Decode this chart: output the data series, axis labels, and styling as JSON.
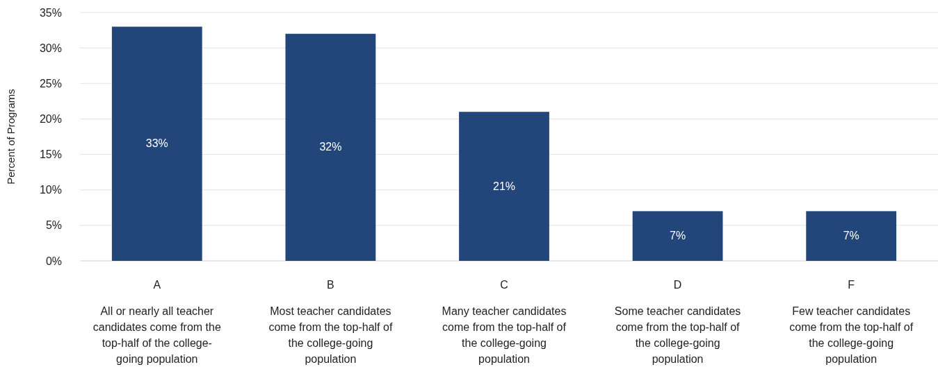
{
  "chart_data": {
    "type": "bar",
    "ylabel": "Percent of Programs",
    "categories": [
      "A\nAll or nearly all teacher candidates come from the top-half of the college-going population",
      "B\nMost teacher candidates come from the top-half of the college-going population",
      "C\nMany teacher candidates come from the top-half of the college-going population",
      "D\nSome teacher candidates come from the top-half of the college-going population",
      "F\nFew teacher candidates come from the top-half of the college-going population"
    ],
    "values": [
      33,
      32,
      21,
      7,
      7
    ],
    "value_labels": [
      "33%",
      "32%",
      "21%",
      "7%",
      "7%"
    ],
    "color": "#23467a",
    "ylim": [
      0,
      35
    ],
    "yticks": [
      {
        "value": 0,
        "label": "0%"
      },
      {
        "value": 5,
        "label": "5%"
      },
      {
        "value": 10,
        "label": "10%"
      },
      {
        "value": 15,
        "label": "15%"
      },
      {
        "value": 20,
        "label": "20%"
      },
      {
        "value": 25,
        "label": "25%"
      },
      {
        "value": 30,
        "label": "30%"
      },
      {
        "value": 35,
        "label": "35%"
      }
    ],
    "grid": "y"
  }
}
